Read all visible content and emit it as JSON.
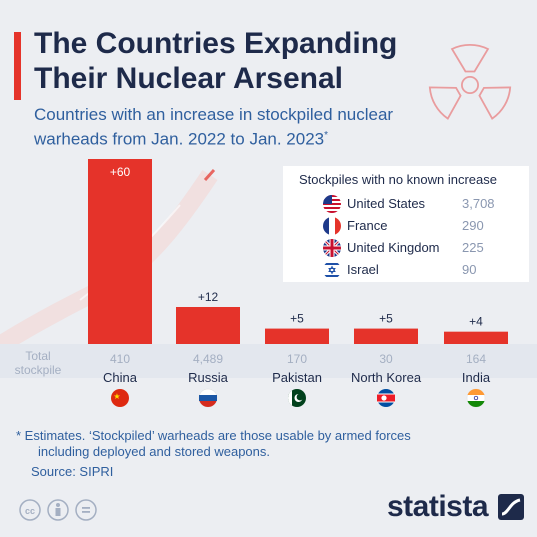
{
  "header": {
    "title": "The Countries Expanding Their Nuclear Arsenal",
    "subtitle": "Countries with an increase in stockpiled nuclear warheads from Jan. 2022 to Jan. 2023",
    "subtitle_mark": "*"
  },
  "chart_data": {
    "type": "bar",
    "categories": [
      "China",
      "Russia",
      "Pakistan",
      "North Korea",
      "India"
    ],
    "values": [
      60,
      12,
      5,
      5,
      4
    ],
    "value_labels": [
      "+60",
      "+12",
      "+5",
      "+5",
      "+4"
    ],
    "total_label": "Total stockpile",
    "totals": [
      "410",
      "4,489",
      "170",
      "30",
      "164"
    ],
    "flag_icons": [
      "china-flag-icon",
      "russia-flag-icon",
      "pakistan-flag-icon",
      "north-korea-flag-icon",
      "india-flag-icon"
    ],
    "bar_color": "#e5332a",
    "ylim": [
      0,
      60
    ],
    "grid": false,
    "legend": {
      "title": "Stockpiles with no known increase",
      "placement": "top-right",
      "items": [
        {
          "name": "United States",
          "value": "3,708",
          "icon": "usa-flag-icon"
        },
        {
          "name": "France",
          "value": "290",
          "icon": "france-flag-icon"
        },
        {
          "name": "United Kingdom",
          "value": "225",
          "icon": "uk-flag-icon"
        },
        {
          "name": "Israel",
          "value": "90",
          "icon": "israel-flag-icon"
        }
      ]
    }
  },
  "footer": {
    "note_line1": "* Estimates. ‘Stockpiled’ warheads are those usable by armed forces",
    "note_line2": "including deployed and stored weapons.",
    "source": "Source: SIPRI",
    "brand": "statista"
  },
  "colors": {
    "accent": "#e5332a",
    "navy": "#1e2a4a",
    "blue_text": "#2f5f9e",
    "muted": "#8a97b0"
  }
}
